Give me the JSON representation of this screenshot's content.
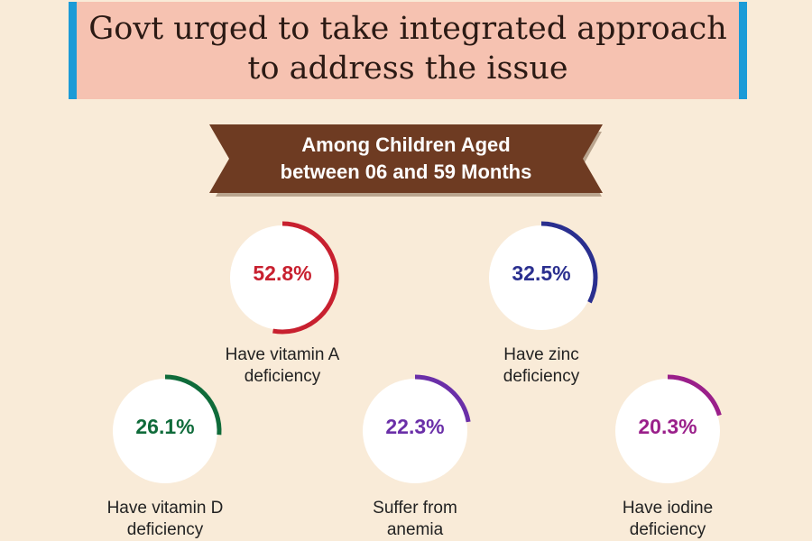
{
  "header": {
    "title_line1": "Govt urged to take integrated approach",
    "title_line2": "to address the issue",
    "box_color": "#f6c2b1",
    "accent_color": "#1b9bd7"
  },
  "ribbon": {
    "line1": "Among Children Aged",
    "line2": "between 06 and 59 Months",
    "color": "#6e3b22"
  },
  "chart_data": {
    "type": "gauge",
    "unit": "%",
    "items": [
      {
        "label_line1": "Have vitamin A",
        "label_line2": "deficiency",
        "value": 52.8,
        "value_label": "52.8%",
        "color": "#c8202f"
      },
      {
        "label_line1": "Have zinc",
        "label_line2": "deficiency",
        "value": 32.5,
        "value_label": "32.5%",
        "color": "#2a2f8f"
      },
      {
        "label_line1": "Have vitamin D",
        "label_line2": "deficiency",
        "value": 26.1,
        "value_label": "26.1%",
        "color": "#0f6b3a"
      },
      {
        "label_line1": "Suffer from",
        "label_line2": "anemia",
        "value": 22.3,
        "value_label": "22.3%",
        "color": "#6a2fa8"
      },
      {
        "label_line1": "Have iodine",
        "label_line2": "deficiency",
        "value": 20.3,
        "value_label": "20.3%",
        "color": "#9a1f8a"
      }
    ]
  }
}
